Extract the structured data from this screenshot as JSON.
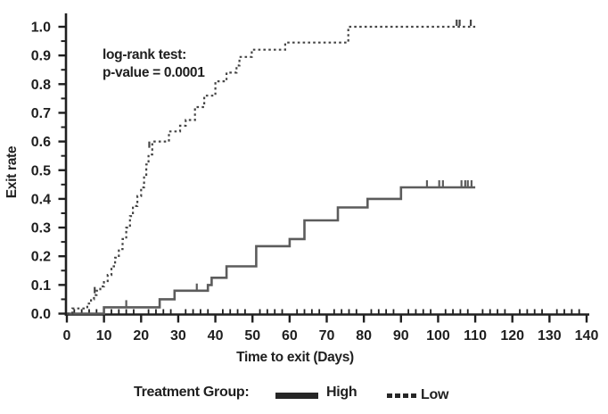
{
  "figure": {
    "annotation": {
      "line1": "log-rank test:",
      "line2": "p-value = 0.0001"
    },
    "legend": {
      "title": "Treatment Group:",
      "entries": [
        {
          "label": "High",
          "style": "solid"
        },
        {
          "label": "Low",
          "style": "dashed"
        }
      ]
    }
  },
  "chart_data": {
    "type": "line",
    "subtype": "kaplan-meier-step",
    "title": "",
    "xlabel": "Time to exit (Days)",
    "ylabel": "Exit rate",
    "xlim": [
      0,
      140
    ],
    "ylim": [
      0.0,
      1.0
    ],
    "x_major_ticks": [
      0,
      10,
      20,
      30,
      40,
      50,
      60,
      70,
      80,
      90,
      100,
      110,
      120,
      130,
      140
    ],
    "x_tick_labels": [
      "0",
      "10",
      "20",
      "30",
      "40",
      "50",
      "60",
      "70",
      "80",
      "90",
      "100",
      "110",
      "120",
      "130",
      "140"
    ],
    "x_minor_step": 2,
    "y_major_ticks": [
      0.0,
      0.1,
      0.2,
      0.3,
      0.4,
      0.5,
      0.6,
      0.7,
      0.8,
      0.9,
      1.0
    ],
    "y_tick_labels": [
      "0.0",
      "0.1",
      "0.2",
      "0.3",
      "0.4",
      "0.5",
      "0.6",
      "0.7",
      "0.8",
      "0.9",
      "1.0"
    ],
    "y_minor_step": 0.05,
    "grid": false,
    "legend_position": "bottom",
    "annotation": "log-rank test: p-value = 0.0001",
    "series": [
      {
        "name": "High",
        "line": "solid",
        "color": "#5c5c5c",
        "end_day": 110,
        "steps": [
          [
            0,
            0
          ],
          [
            10,
            0.022
          ],
          [
            25,
            0.05
          ],
          [
            29,
            0.08
          ],
          [
            38,
            0.1
          ],
          [
            39,
            0.125
          ],
          [
            43,
            0.165
          ],
          [
            51,
            0.235
          ],
          [
            60,
            0.26
          ],
          [
            64,
            0.325
          ],
          [
            73,
            0.37
          ],
          [
            81,
            0.4
          ],
          [
            90,
            0.44
          ]
        ],
        "censor_marks": [
          [
            16,
            0.022
          ],
          [
            35,
            0.08
          ],
          [
            97,
            0.44
          ],
          [
            100.3,
            0.44
          ],
          [
            101.3,
            0.44
          ],
          [
            106.3,
            0.44
          ],
          [
            107.3,
            0.44
          ],
          [
            108,
            0.44
          ],
          [
            109,
            0.44
          ]
        ]
      },
      {
        "name": "Low",
        "line": "dashed",
        "color": "#454545",
        "end_day": 110,
        "steps": [
          [
            0,
            0
          ],
          [
            1.5,
            0.018
          ],
          [
            5.5,
            0.035
          ],
          [
            6.5,
            0.05
          ],
          [
            7.3,
            0.065
          ],
          [
            8,
            0.08
          ],
          [
            9,
            0.095
          ],
          [
            10,
            0.11
          ],
          [
            11,
            0.135
          ],
          [
            12,
            0.165
          ],
          [
            13,
            0.195
          ],
          [
            14,
            0.225
          ],
          [
            15,
            0.26
          ],
          [
            16,
            0.3
          ],
          [
            17,
            0.34
          ],
          [
            17.8,
            0.375
          ],
          [
            19,
            0.41
          ],
          [
            20,
            0.44
          ],
          [
            20.8,
            0.48
          ],
          [
            21.4,
            0.52
          ],
          [
            22,
            0.555
          ],
          [
            23,
            0.6
          ],
          [
            27.5,
            0.635
          ],
          [
            30.5,
            0.655
          ],
          [
            32,
            0.675
          ],
          [
            34.5,
            0.72
          ],
          [
            37,
            0.76
          ],
          [
            40,
            0.81
          ],
          [
            43,
            0.84
          ],
          [
            45.7,
            0.865
          ],
          [
            46.5,
            0.895
          ],
          [
            49.8,
            0.92
          ],
          [
            58.8,
            0.945
          ],
          [
            75.8,
            1.0
          ]
        ],
        "censor_marks": [
          [
            7.5,
            0.068
          ],
          [
            22.2,
            0.575
          ],
          [
            105,
            1.0
          ],
          [
            105.8,
            1.0
          ],
          [
            108.8,
            1.0
          ]
        ]
      }
    ]
  },
  "colors": {
    "background": "#ffffff",
    "axis": "#1f1f1f",
    "text": "#1f1f1f",
    "high_line": "#5c5c5c",
    "low_line": "#454545"
  }
}
